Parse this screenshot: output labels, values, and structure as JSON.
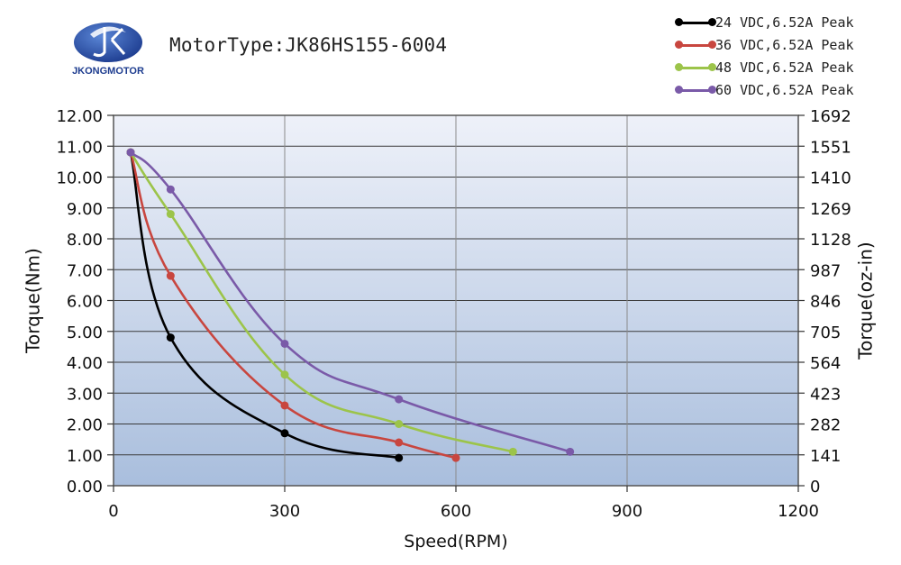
{
  "logo": {
    "brand": "JKONGMOTOR",
    "colors": {
      "primary": "#1d3c8f",
      "accent": "#5a86d6"
    }
  },
  "header": {
    "motor_type": "MotorType:JK86HS155-6004"
  },
  "chart_data": {
    "type": "line",
    "title": "MotorType:JK86HS155-6004",
    "xlabel": "Speed(RPM)",
    "ylabel": "Torque(Nm)",
    "y2label": "Torque(oz-in)",
    "xlim": [
      0,
      1200
    ],
    "ylim": [
      0,
      12
    ],
    "xticks": [
      0,
      300,
      600,
      900,
      1200
    ],
    "xtick_labels": [
      "0",
      "300",
      "600",
      "900",
      "1200"
    ],
    "yticks": [
      0,
      1,
      2,
      3,
      4,
      5,
      6,
      7,
      8,
      9,
      10,
      11,
      12
    ],
    "ytick_labels": [
      "0.00",
      "1.00",
      "2.00",
      "3.00",
      "4.00",
      "5.00",
      "6.00",
      "7.00",
      "8.00",
      "9.00",
      "10.00",
      "11.00",
      "12.00"
    ],
    "y2tick_labels": [
      "0",
      "141",
      "282",
      "423",
      "564",
      "705",
      "846",
      "987",
      "1128",
      "1269",
      "1410",
      "1551",
      "1692"
    ],
    "grid": true,
    "legend_position": "top-right",
    "series": [
      {
        "name": "24 VDC,6.52A Peak",
        "color": "#000000",
        "x": [
          30,
          100,
          300,
          500
        ],
        "values": [
          10.8,
          4.8,
          1.7,
          0.9
        ]
      },
      {
        "name": "36 VDC,6.52A Peak",
        "color": "#c8463f",
        "x": [
          30,
          100,
          300,
          500,
          600
        ],
        "values": [
          10.8,
          6.8,
          2.6,
          1.4,
          0.9
        ]
      },
      {
        "name": "48 VDC,6.52A Peak",
        "color": "#9cc44a",
        "x": [
          30,
          100,
          300,
          500,
          700
        ],
        "values": [
          10.8,
          8.8,
          3.6,
          2.0,
          1.1
        ]
      },
      {
        "name": "60 VDC,6.52A Peak",
        "color": "#7a5aa8",
        "x": [
          30,
          100,
          300,
          500,
          800
        ],
        "values": [
          10.8,
          9.6,
          4.6,
          2.8,
          1.1
        ]
      }
    ]
  }
}
